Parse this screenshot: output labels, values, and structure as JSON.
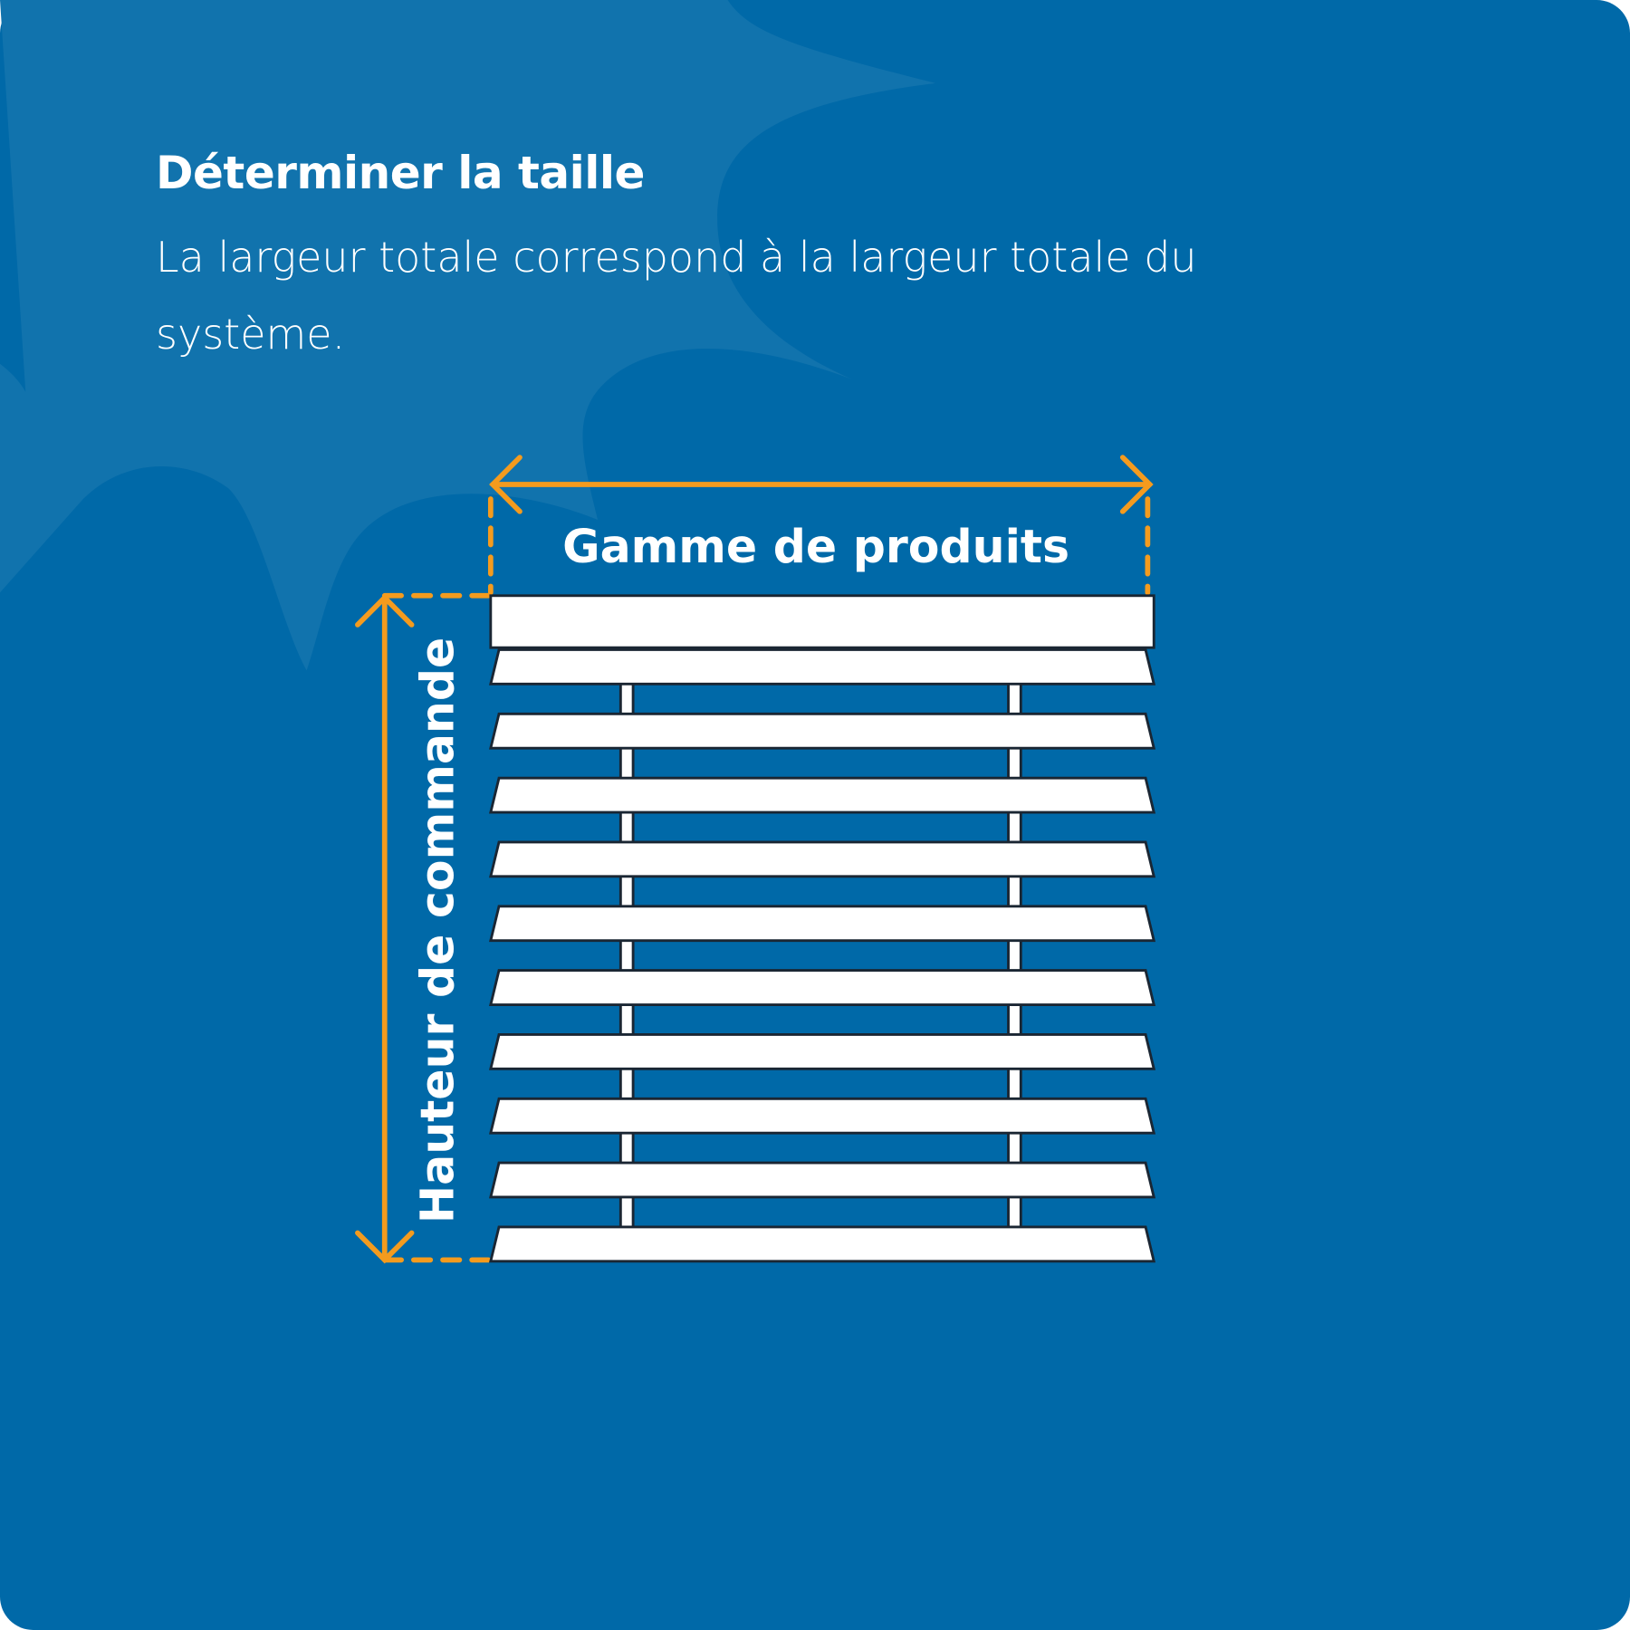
{
  "header": {
    "title": "Déterminer la taille",
    "description": "La largeur totale correspond à la largeur totale du système."
  },
  "diagram": {
    "width_label": "Gamme de produits",
    "height_label": "Hauteur de commande"
  }
}
